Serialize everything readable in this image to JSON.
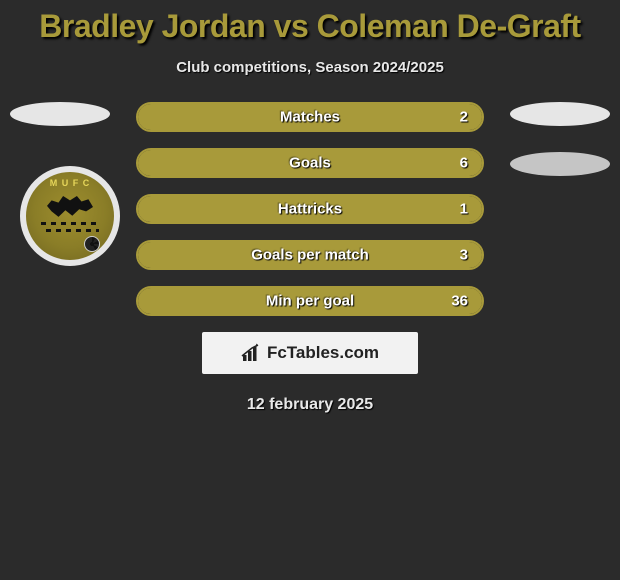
{
  "title": "Bradley Jordan vs Coleman De-Graft",
  "subtitle": "Club competitions, Season 2024/2025",
  "date": "12 february 2025",
  "colors": {
    "accent": "#a89a3a",
    "background": "#2b2b2b",
    "ellipse": "#e6e6e6",
    "ellipse_dim": "#c5c5c5",
    "brand_bg": "#f2f2f2",
    "text": "#ffffff"
  },
  "badge": {
    "arc_text": "M U F C",
    "border_color": "#e6e6e6",
    "bg_color": "#8a7d27"
  },
  "brand": {
    "icon": "bar-chart-icon",
    "text_bold": "Fc",
    "text_rest": "Tables.com"
  },
  "stats": [
    {
      "label": "Matches",
      "value": "2",
      "fill_pct": 100
    },
    {
      "label": "Goals",
      "value": "6",
      "fill_pct": 100
    },
    {
      "label": "Hattricks",
      "value": "1",
      "fill_pct": 100
    },
    {
      "label": "Goals per match",
      "value": "3",
      "fill_pct": 100
    },
    {
      "label": "Min per goal",
      "value": "36",
      "fill_pct": 100
    }
  ]
}
